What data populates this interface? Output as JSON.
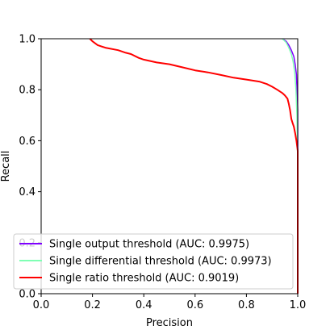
{
  "chart_data": {
    "type": "line",
    "title": "",
    "xlabel": "Precision",
    "ylabel": "Recall",
    "xlim": [
      0,
      1
    ],
    "ylim": [
      0,
      1
    ],
    "xticks": [
      "0.0",
      "0.2",
      "0.4",
      "0.6",
      "0.8",
      "1.0"
    ],
    "yticks": [
      "0.0",
      "0.2",
      "0.4",
      "0.6",
      "0.8",
      "1.0"
    ],
    "grid": false,
    "legend_position": "lower-right",
    "series": [
      {
        "name": "Single output threshold (AUC: 0.9975)",
        "color": "#7f00ff",
        "x": [
          0.94,
          0.955,
          0.965,
          0.975,
          0.985,
          0.99,
          0.995,
          1.0,
          1.0,
          1.0
        ],
        "y": [
          1.0,
          0.99,
          0.975,
          0.955,
          0.93,
          0.9,
          0.86,
          0.72,
          0.3,
          0.0
        ]
      },
      {
        "name": "Single differential threshold (AUC: 0.9973)",
        "color": "#80ffb4",
        "x": [
          0.94,
          0.955,
          0.965,
          0.975,
          0.982,
          0.988,
          0.993,
          0.997,
          1.0,
          1.0
        ],
        "y": [
          1.0,
          0.985,
          0.965,
          0.94,
          0.91,
          0.87,
          0.8,
          0.7,
          0.5,
          0.0
        ]
      },
      {
        "name": "Single ratio threshold (AUC: 0.9019)",
        "color": "#ff0000",
        "x": [
          0.19,
          0.2,
          0.22,
          0.25,
          0.3,
          0.33,
          0.35,
          0.38,
          0.4,
          0.45,
          0.5,
          0.55,
          0.6,
          0.65,
          0.7,
          0.75,
          0.8,
          0.85,
          0.88,
          0.9,
          0.92,
          0.94,
          0.95,
          0.96,
          0.965,
          0.97,
          0.975,
          0.98,
          0.985,
          0.99,
          0.995,
          1.0,
          1.0
        ],
        "y": [
          1.0,
          0.99,
          0.975,
          0.965,
          0.955,
          0.945,
          0.94,
          0.925,
          0.918,
          0.907,
          0.9,
          0.888,
          0.876,
          0.868,
          0.858,
          0.847,
          0.84,
          0.832,
          0.822,
          0.812,
          0.8,
          0.787,
          0.778,
          0.765,
          0.745,
          0.72,
          0.685,
          0.67,
          0.655,
          0.63,
          0.6,
          0.56,
          0.0
        ]
      }
    ]
  }
}
